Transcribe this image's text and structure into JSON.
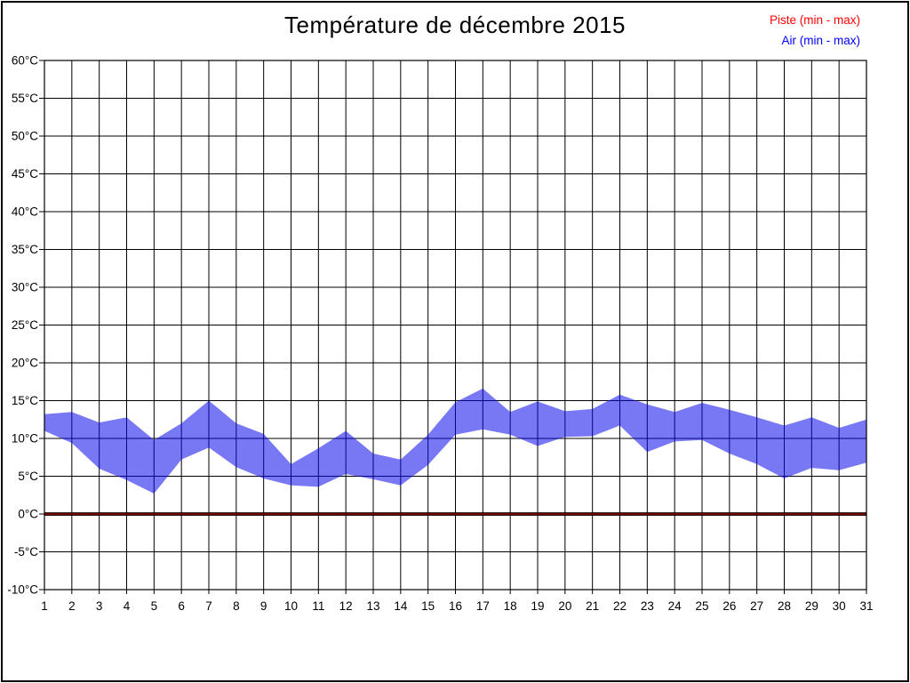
{
  "title": "Température de décembre 2015",
  "legend": [
    {
      "label": "Piste (min - max)",
      "color": "#ff0000"
    },
    {
      "label": "Air (min - max)",
      "color": "#0000ff"
    }
  ],
  "colors": {
    "background": "#ffffff",
    "frame": "#000000",
    "grid": "#000000",
    "axis_text": "#000000",
    "band_fill": "rgba(10,10,235,0.55)",
    "piste_line_core": "#8b0000",
    "piste_line_edge": "#000000"
  },
  "chart_data": {
    "type": "area",
    "title": "Température de décembre 2015",
    "xlabel": "",
    "ylabel": "",
    "x": [
      1,
      2,
      3,
      4,
      5,
      6,
      7,
      8,
      9,
      10,
      11,
      12,
      13,
      14,
      15,
      16,
      17,
      18,
      19,
      20,
      21,
      22,
      23,
      24,
      25,
      26,
      27,
      28,
      29,
      30,
      31
    ],
    "ylim": [
      -10,
      60
    ],
    "ytick_step": 5,
    "ytick_suffix": "°C",
    "grid": true,
    "legend_position": "top-right",
    "series": [
      {
        "name": "Piste (min - max)",
        "type": "constant-line",
        "value": 0
      },
      {
        "name": "Air (min - max)",
        "type": "band",
        "min": [
          11.0,
          9.4,
          6.0,
          4.5,
          2.7,
          7.2,
          8.8,
          6.2,
          4.7,
          3.8,
          3.6,
          5.3,
          4.6,
          3.8,
          6.5,
          10.5,
          11.2,
          10.5,
          9.0,
          10.2,
          10.3,
          11.7,
          8.2,
          9.6,
          9.8,
          8.0,
          6.6,
          4.7,
          6.1,
          5.8,
          6.8
        ],
        "max": [
          13.2,
          13.5,
          12.1,
          12.8,
          9.8,
          12.0,
          15.0,
          12.0,
          10.6,
          6.6,
          8.7,
          11.0,
          8.0,
          7.2,
          10.5,
          14.8,
          16.6,
          13.5,
          14.9,
          13.6,
          13.9,
          15.8,
          14.5,
          13.5,
          14.7,
          13.8,
          12.8,
          11.7,
          12.8,
          11.4,
          12.5
        ]
      }
    ]
  }
}
